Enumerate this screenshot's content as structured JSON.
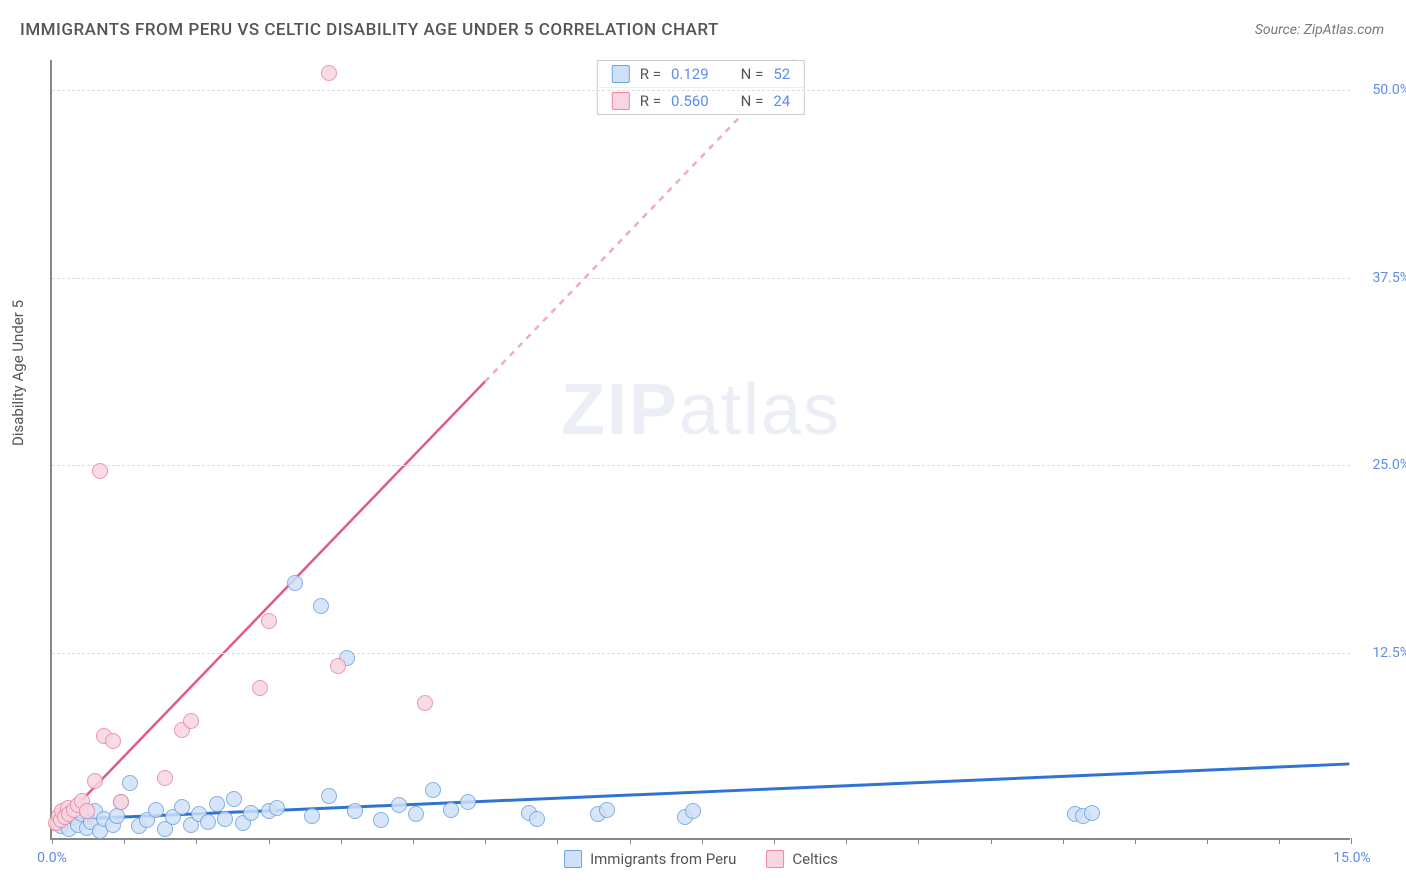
{
  "title": "IMMIGRANTS FROM PERU VS CELTIC DISABILITY AGE UNDER 5 CORRELATION CHART",
  "source": "Source: ZipAtlas.com",
  "ylabel": "Disability Age Under 5",
  "watermark_a": "ZIP",
  "watermark_b": "atlas",
  "chart": {
    "type": "scatter",
    "background_color": "#ffffff",
    "grid_color": "#dddddd",
    "axis_color": "#888888",
    "xlim": [
      0,
      15
    ],
    "ylim": [
      0,
      52
    ],
    "x_ticks_minor_step": 0.833,
    "x_labels": [
      {
        "x": 0,
        "label": "0.0%"
      },
      {
        "x": 15,
        "label": "15.0%"
      }
    ],
    "y_labels": [
      {
        "y": 12.5,
        "label": "12.5%"
      },
      {
        "y": 25.0,
        "label": "25.0%"
      },
      {
        "y": 37.5,
        "label": "37.5%"
      },
      {
        "y": 50.0,
        "label": "50.0%"
      }
    ],
    "point_radius": 8,
    "point_stroke_width": 1.5,
    "series": [
      {
        "id": "peru",
        "label": "Immigrants from Peru",
        "fill": "#cfe1f7",
        "stroke": "#6fa3e0",
        "r": "0.129",
        "n": "52",
        "trend": {
          "slope": 0.25,
          "intercept": 1.2,
          "color": "#2f74d0",
          "width": 3
        },
        "points": [
          [
            0.1,
            0.8
          ],
          [
            0.15,
            1.2
          ],
          [
            0.2,
            0.6
          ],
          [
            0.25,
            1.4
          ],
          [
            0.3,
            0.9
          ],
          [
            0.35,
            1.6
          ],
          [
            0.4,
            0.7
          ],
          [
            0.45,
            1.1
          ],
          [
            0.5,
            1.8
          ],
          [
            0.55,
            0.5
          ],
          [
            0.6,
            1.3
          ],
          [
            0.7,
            0.9
          ],
          [
            0.75,
            1.5
          ],
          [
            0.8,
            2.4
          ],
          [
            0.9,
            3.7
          ],
          [
            1.0,
            0.8
          ],
          [
            1.1,
            1.2
          ],
          [
            1.2,
            1.9
          ],
          [
            1.3,
            0.6
          ],
          [
            1.4,
            1.4
          ],
          [
            1.5,
            2.1
          ],
          [
            1.6,
            0.9
          ],
          [
            1.7,
            1.6
          ],
          [
            1.8,
            1.1
          ],
          [
            1.9,
            2.3
          ],
          [
            2.0,
            1.3
          ],
          [
            2.1,
            2.6
          ],
          [
            2.2,
            1.0
          ],
          [
            2.3,
            1.7
          ],
          [
            2.5,
            1.8
          ],
          [
            2.6,
            2.0
          ],
          [
            2.8,
            17.0
          ],
          [
            3.0,
            1.5
          ],
          [
            3.1,
            15.5
          ],
          [
            3.2,
            2.8
          ],
          [
            3.4,
            12.0
          ],
          [
            3.5,
            1.8
          ],
          [
            3.8,
            1.2
          ],
          [
            4.0,
            2.2
          ],
          [
            4.2,
            1.6
          ],
          [
            4.4,
            3.2
          ],
          [
            4.6,
            1.9
          ],
          [
            4.8,
            2.4
          ],
          [
            5.5,
            1.7
          ],
          [
            5.6,
            1.3
          ],
          [
            6.3,
            1.6
          ],
          [
            6.4,
            1.9
          ],
          [
            7.3,
            1.4
          ],
          [
            7.4,
            1.8
          ],
          [
            11.8,
            1.6
          ],
          [
            11.9,
            1.5
          ],
          [
            12.0,
            1.7
          ]
        ]
      },
      {
        "id": "celtics",
        "label": "Celtics",
        "fill": "#f9d5e0",
        "stroke": "#e787a8",
        "r": "0.560",
        "n": "24",
        "trend": {
          "slope": 6.0,
          "intercept": 0.5,
          "color": "#e05a8a",
          "width": 2.5,
          "dashed_after_x": 5.0
        },
        "points": [
          [
            0.05,
            1.0
          ],
          [
            0.08,
            1.5
          ],
          [
            0.1,
            1.2
          ],
          [
            0.12,
            1.8
          ],
          [
            0.15,
            1.4
          ],
          [
            0.18,
            2.0
          ],
          [
            0.2,
            1.6
          ],
          [
            0.25,
            1.9
          ],
          [
            0.3,
            2.2
          ],
          [
            0.35,
            2.5
          ],
          [
            0.4,
            1.8
          ],
          [
            0.5,
            3.8
          ],
          [
            0.55,
            24.5
          ],
          [
            0.6,
            6.8
          ],
          [
            0.7,
            6.5
          ],
          [
            0.8,
            2.4
          ],
          [
            1.3,
            4.0
          ],
          [
            1.5,
            7.2
          ],
          [
            1.6,
            7.8
          ],
          [
            2.4,
            10.0
          ],
          [
            2.5,
            14.5
          ],
          [
            3.2,
            51.0
          ],
          [
            3.3,
            11.5
          ],
          [
            4.3,
            9.0
          ]
        ]
      }
    ]
  }
}
